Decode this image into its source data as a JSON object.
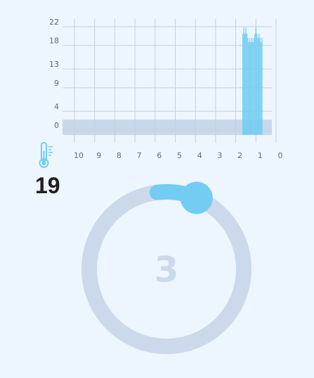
{
  "chart_data": {
    "type": "bar",
    "x_ticks": [
      "10",
      "9",
      "8",
      "7",
      "6",
      "5",
      "4",
      "3",
      "2",
      "1",
      "0"
    ],
    "y_ticks": [
      "0",
      "4",
      "9",
      "13",
      "18",
      "22"
    ],
    "xlim": [
      10,
      0
    ],
    "ylim": [
      0,
      22
    ],
    "band": [
      0,
      2.2
    ],
    "grid": true,
    "colors": {
      "bar": "#73cdf2",
      "band": "#c9d7ea",
      "grid": "#c4d0de"
    },
    "bars": [
      {
        "x": 1.65,
        "y": 20.5
      },
      {
        "x": 1.6,
        "y": 21.8
      },
      {
        "x": 1.55,
        "y": 20.5
      },
      {
        "x": 1.5,
        "y": 21.8
      },
      {
        "x": 1.45,
        "y": 20.5
      },
      {
        "x": 1.4,
        "y": 19.6
      },
      {
        "x": 1.35,
        "y": 18.7
      },
      {
        "x": 1.3,
        "y": 19.6
      },
      {
        "x": 1.25,
        "y": 18.7
      },
      {
        "x": 1.2,
        "y": 19.6
      },
      {
        "x": 1.15,
        "y": 18.7
      },
      {
        "x": 1.1,
        "y": 19.6
      },
      {
        "x": 1.05,
        "y": 20.5
      },
      {
        "x": 1.0,
        "y": 21.8
      },
      {
        "x": 0.95,
        "y": 20.5
      },
      {
        "x": 0.9,
        "y": 19.6
      },
      {
        "x": 0.85,
        "y": 20.5
      },
      {
        "x": 0.8,
        "y": 19.6
      },
      {
        "x": 0.75,
        "y": 18.7
      },
      {
        "x": 0.7,
        "y": 19.6
      }
    ]
  },
  "reading": {
    "value": "19",
    "icon": "thermometer-icon"
  },
  "dial": {
    "value": "3",
    "position": 0.93,
    "colors": {
      "track": "#ccd9ea",
      "knob": "#73cdf2"
    }
  }
}
